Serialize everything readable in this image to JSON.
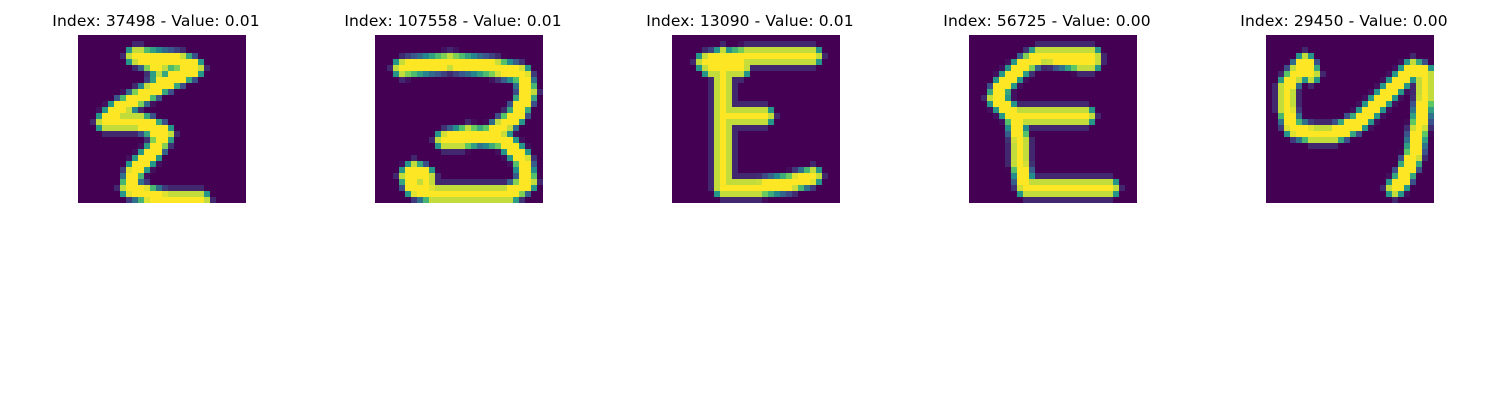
{
  "figure": {
    "background": "#ffffff",
    "colormap": [
      "#440154",
      "#3b528b",
      "#21918c",
      "#5ec962",
      "#fde725"
    ],
    "panels": [
      {
        "title": "Index: 37498 - Value: 0.01",
        "image": "handwritten-glyph",
        "strokes": [
          [
            [
              9,
              3
            ],
            [
              17,
              4
            ],
            [
              19,
              5
            ],
            [
              13,
              8
            ],
            [
              6,
              12
            ],
            [
              4,
              14
            ],
            [
              10,
              14
            ],
            [
              14,
              16
            ],
            [
              12,
              19
            ],
            [
              9,
              22
            ],
            [
              8,
              25
            ],
            [
              14,
              27
            ],
            [
              20,
              27
            ]
          ],
          [
            [
              10,
              3
            ],
            [
              13,
              5
            ]
          ],
          [
            [
              4,
              14
            ],
            [
              6,
              13
            ]
          ]
        ]
      },
      {
        "title": "Index: 107558 - Value: 0.01",
        "image": "handwritten-glyph",
        "strokes": [
          [
            [
              4,
              5
            ],
            [
              12,
              4
            ],
            [
              20,
              5
            ],
            [
              24,
              6
            ],
            [
              25,
              9
            ],
            [
              23,
              13
            ],
            [
              19,
              16
            ],
            [
              14,
              17
            ],
            [
              11,
              17
            ],
            [
              15,
              16
            ],
            [
              21,
              17
            ],
            [
              24,
              20
            ],
            [
              25,
              24
            ],
            [
              22,
              26
            ],
            [
              16,
              26
            ],
            [
              9,
              26
            ],
            [
              6,
              25
            ],
            [
              5,
              23
            ],
            [
              6,
              22
            ],
            [
              8,
              23
            ],
            [
              8,
              25
            ]
          ]
        ]
      },
      {
        "title": "Index: 13090 - Value: 0.01",
        "image": "handwritten-glyph",
        "strokes": [
          [
            [
              5,
              4
            ],
            [
              12,
              3
            ],
            [
              20,
              3
            ],
            [
              23,
              3
            ]
          ],
          [
            [
              8,
              3
            ],
            [
              8,
              8
            ],
            [
              8,
              14
            ],
            [
              8,
              20
            ],
            [
              8,
              25
            ]
          ],
          [
            [
              8,
              13
            ],
            [
              12,
              13
            ],
            [
              15,
              13
            ]
          ],
          [
            [
              8,
              25
            ],
            [
              14,
              25
            ],
            [
              20,
              24
            ],
            [
              23,
              23
            ]
          ],
          [
            [
              6,
              5
            ],
            [
              11,
              5
            ]
          ]
        ]
      },
      {
        "title": "Index: 56725 - Value: 0.00",
        "image": "handwritten-glyph",
        "strokes": [
          [
            [
              20,
              3
            ],
            [
              16,
              3
            ],
            [
              11,
              3
            ],
            [
              8,
              5
            ],
            [
              5,
              8
            ],
            [
              4,
              10
            ],
            [
              7,
              13
            ],
            [
              11,
              13
            ],
            [
              15,
              13
            ],
            [
              19,
              13
            ]
          ],
          [
            [
              7,
              13
            ],
            [
              8,
              17
            ],
            [
              8,
              21
            ],
            [
              9,
              25
            ],
            [
              13,
              25
            ],
            [
              18,
              25
            ],
            [
              23,
              25
            ]
          ],
          [
            [
              13,
              3
            ],
            [
              18,
              4
            ],
            [
              20,
              4
            ]
          ]
        ]
      },
      {
        "title": "Index: 29450 - Value: 0.00",
        "image": "handwritten-glyph",
        "strokes": [
          [
            [
              6,
              4
            ],
            [
              3,
              8
            ],
            [
              3,
              12
            ],
            [
              4,
              15
            ],
            [
              7,
              16
            ],
            [
              11,
              16
            ],
            [
              15,
              14
            ],
            [
              18,
              11
            ],
            [
              21,
              8
            ],
            [
              24,
              5
            ],
            [
              26,
              6
            ],
            [
              26,
              10
            ],
            [
              25,
              15
            ],
            [
              24,
              20
            ],
            [
              22,
              24
            ],
            [
              21,
              25
            ]
          ],
          [
            [
              6,
              4
            ],
            [
              7,
              6
            ]
          ]
        ]
      }
    ]
  }
}
